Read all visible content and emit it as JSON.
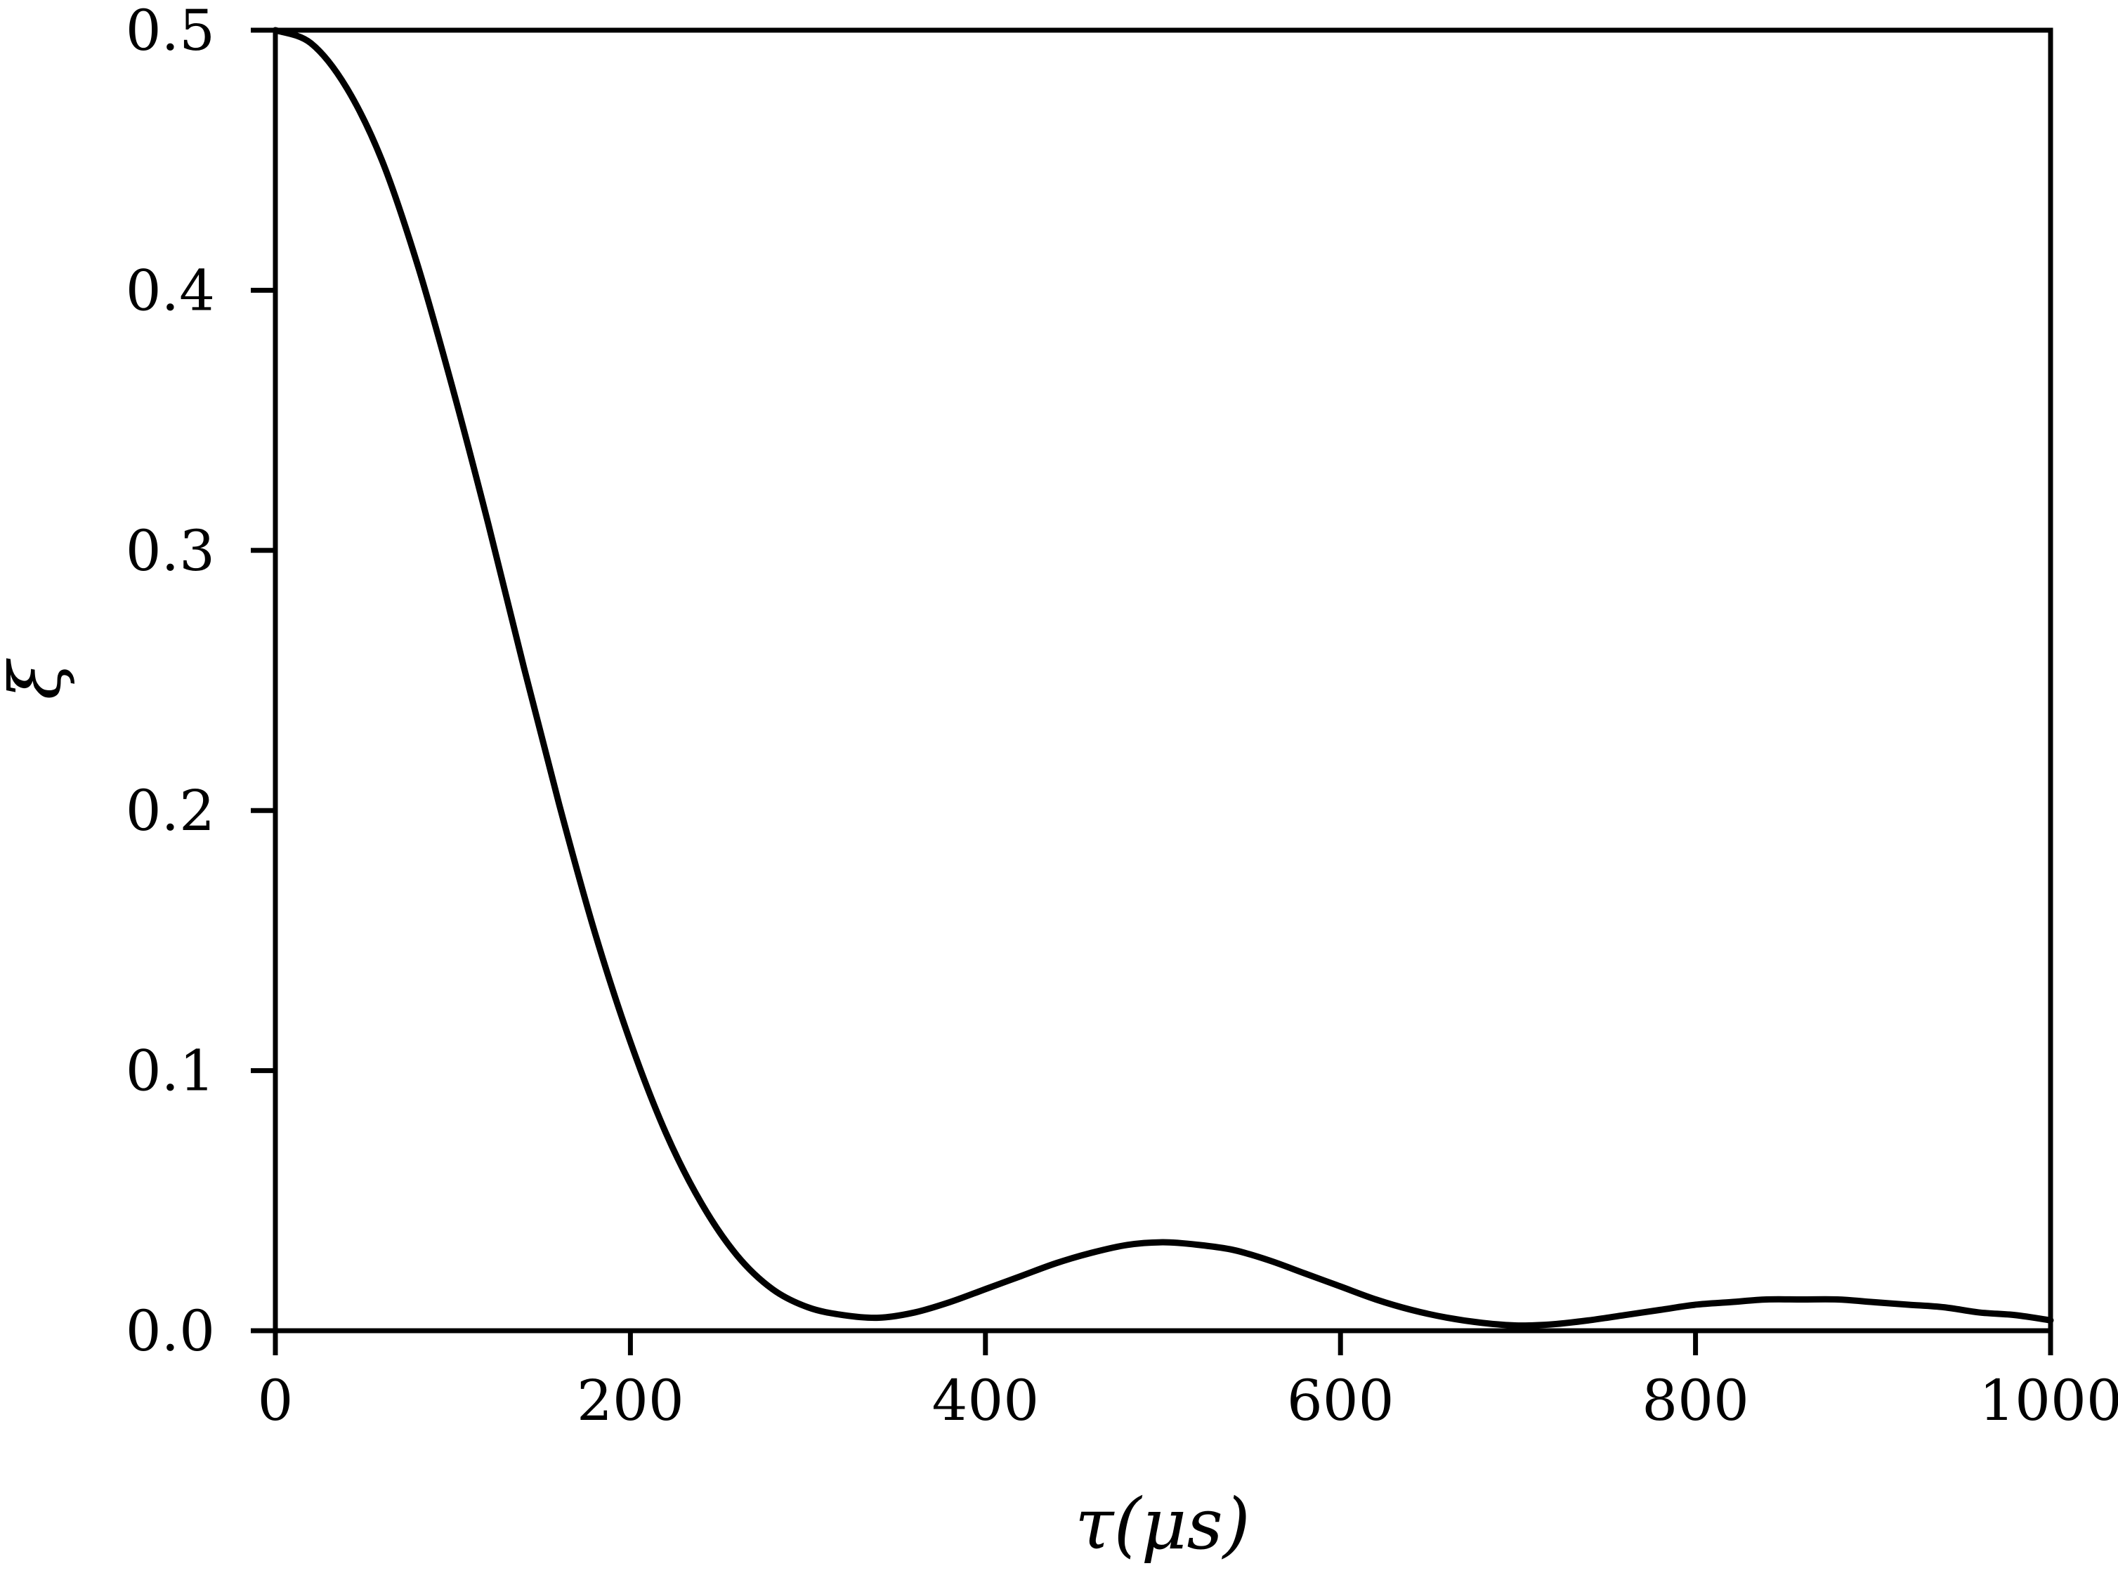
{
  "chart_data": {
    "type": "line",
    "title": "",
    "xlabel": "τ(μs)",
    "ylabel": "ξ",
    "xlim": [
      0,
      1000
    ],
    "ylim": [
      0,
      0.5
    ],
    "xticks": [
      0,
      200,
      400,
      600,
      800,
      1000
    ],
    "xtick_labels": [
      "0",
      "200",
      "400",
      "600",
      "800",
      "1000"
    ],
    "yticks": [
      0,
      0.1,
      0.2,
      0.3,
      0.4,
      0.5
    ],
    "ytick_labels": [
      "0.0",
      "0.1",
      "0.2",
      "0.3",
      "0.4",
      "0.5"
    ],
    "grid": false,
    "line_color": "#000000",
    "series": [
      {
        "x": [
          0,
          20,
          40,
          60,
          80,
          100,
          120,
          140,
          160,
          180,
          200,
          220,
          240,
          260,
          280,
          300,
          320,
          340,
          360,
          380,
          400,
          420,
          440,
          460,
          480,
          500,
          520,
          540,
          560,
          580,
          600,
          620,
          640,
          660,
          680,
          700,
          720,
          740,
          760,
          780,
          800,
          820,
          840,
          860,
          880,
          900,
          920,
          940,
          960,
          980,
          1000
        ],
        "y": [
          0.5,
          0.495,
          0.478,
          0.45,
          0.41,
          0.362,
          0.31,
          0.255,
          0.202,
          0.153,
          0.111,
          0.076,
          0.049,
          0.029,
          0.016,
          0.009,
          0.006,
          0.005,
          0.007,
          0.011,
          0.016,
          0.021,
          0.026,
          0.03,
          0.033,
          0.034,
          0.033,
          0.031,
          0.027,
          0.022,
          0.017,
          0.012,
          0.008,
          0.005,
          0.003,
          0.002,
          0.0025,
          0.004,
          0.006,
          0.008,
          0.01,
          0.011,
          0.012,
          0.012,
          0.012,
          0.011,
          0.01,
          0.009,
          0.007,
          0.006,
          0.004
        ]
      }
    ]
  }
}
